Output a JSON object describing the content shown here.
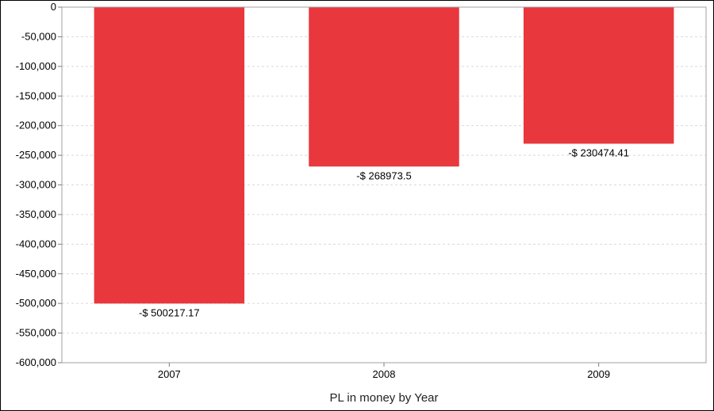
{
  "chart_data": {
    "type": "bar",
    "categories": [
      "2007",
      "2008",
      "2009"
    ],
    "values": [
      -500217.17,
      -268973.5,
      -230474.41
    ],
    "data_labels": [
      "-$ 500217.17",
      "-$ 268973.5",
      "-$ 230474.41"
    ],
    "xlabel": "PL in money by Year",
    "ylabel": "",
    "ylim": [
      -600000,
      0
    ],
    "yticks": [
      0,
      -50000,
      -100000,
      -150000,
      -200000,
      -250000,
      -300000,
      -350000,
      -400000,
      -450000,
      -500000,
      -550000,
      -600000
    ],
    "ytick_labels": [
      "0",
      "-50,000",
      "-100,000",
      "-150,000",
      "-200,000",
      "-250,000",
      "-300,000",
      "-350,000",
      "-400,000",
      "-450,000",
      "-500,000",
      "-550,000",
      "-600,000"
    ],
    "grid": true,
    "bar_color": "#e8383d",
    "grid_color": "#d9d9d9"
  }
}
